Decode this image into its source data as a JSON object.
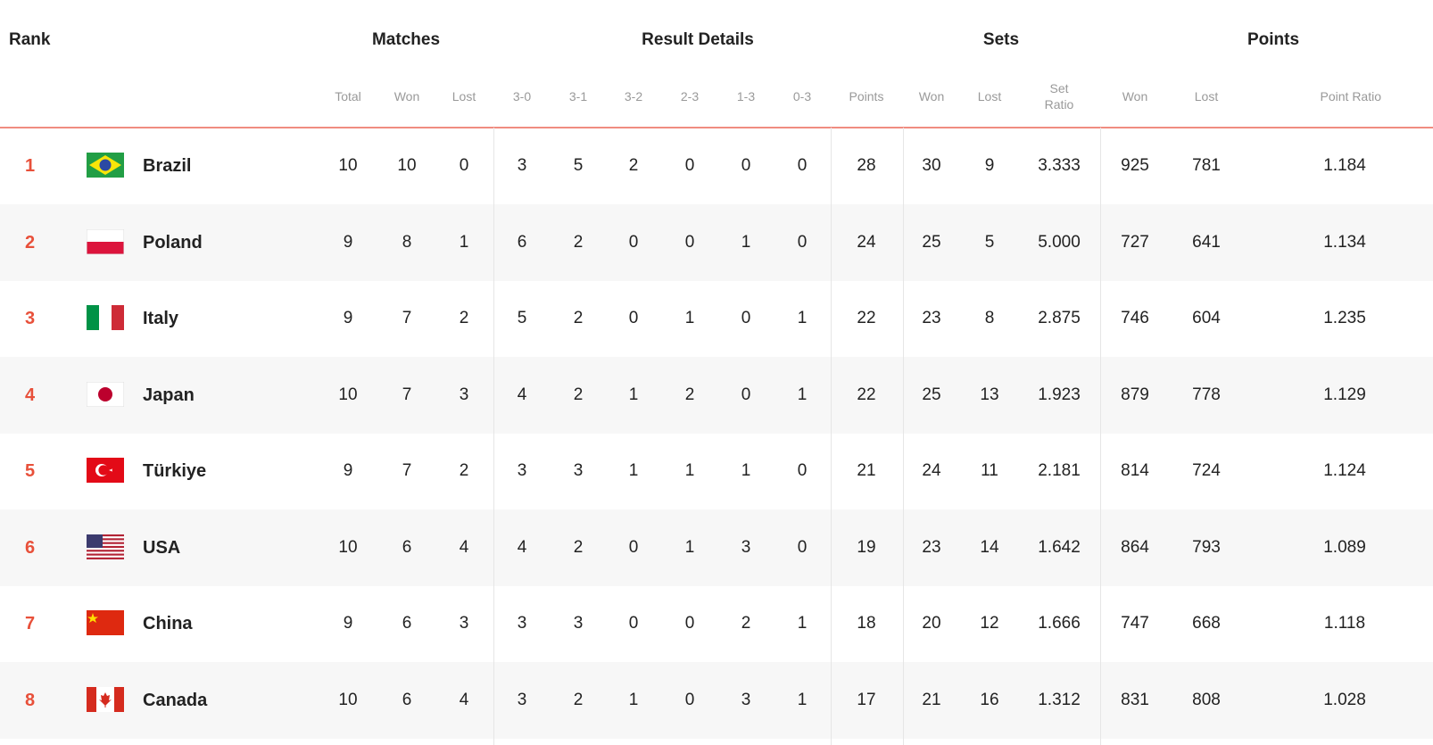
{
  "header": {
    "groups": [
      "Rank",
      "Matches",
      "Result Details",
      "Sets",
      "Points"
    ],
    "columns": [
      "Total",
      "Won",
      "Lost",
      "3-0",
      "3-1",
      "3-2",
      "2-3",
      "1-3",
      "0-3",
      "Points",
      "Won",
      "Lost",
      "Set Ratio",
      "Won",
      "Lost",
      "Point Ratio"
    ]
  },
  "table": {
    "rows": [
      {
        "rank": "1",
        "team": "Brazil",
        "cells": [
          "10",
          "10",
          "0",
          "3",
          "5",
          "2",
          "0",
          "0",
          "0",
          "28",
          "30",
          "9",
          "3.333",
          "925",
          "781",
          "1.184"
        ]
      },
      {
        "rank": "2",
        "team": "Poland",
        "cells": [
          "9",
          "8",
          "1",
          "6",
          "2",
          "0",
          "0",
          "1",
          "0",
          "24",
          "25",
          "5",
          "5.000",
          "727",
          "641",
          "1.134"
        ]
      },
      {
        "rank": "3",
        "team": "Italy",
        "cells": [
          "9",
          "7",
          "2",
          "5",
          "2",
          "0",
          "1",
          "0",
          "1",
          "22",
          "23",
          "8",
          "2.875",
          "746",
          "604",
          "1.235"
        ]
      },
      {
        "rank": "4",
        "team": "Japan",
        "cells": [
          "10",
          "7",
          "3",
          "4",
          "2",
          "1",
          "2",
          "0",
          "1",
          "22",
          "25",
          "13",
          "1.923",
          "879",
          "778",
          "1.129"
        ]
      },
      {
        "rank": "5",
        "team": "Türkiye",
        "cells": [
          "9",
          "7",
          "2",
          "3",
          "3",
          "1",
          "1",
          "1",
          "0",
          "21",
          "24",
          "11",
          "2.181",
          "814",
          "724",
          "1.124"
        ]
      },
      {
        "rank": "6",
        "team": "USA",
        "cells": [
          "10",
          "6",
          "4",
          "4",
          "2",
          "0",
          "1",
          "3",
          "0",
          "19",
          "23",
          "14",
          "1.642",
          "864",
          "793",
          "1.089"
        ]
      },
      {
        "rank": "7",
        "team": "China",
        "cells": [
          "9",
          "6",
          "3",
          "3",
          "3",
          "0",
          "0",
          "2",
          "1",
          "18",
          "20",
          "12",
          "1.666",
          "747",
          "668",
          "1.118"
        ]
      },
      {
        "rank": "8",
        "team": "Canada",
        "cells": [
          "10",
          "6",
          "4",
          "3",
          "2",
          "1",
          "0",
          "3",
          "1",
          "17",
          "21",
          "16",
          "1.312",
          "831",
          "808",
          "1.028"
        ]
      }
    ]
  }
}
